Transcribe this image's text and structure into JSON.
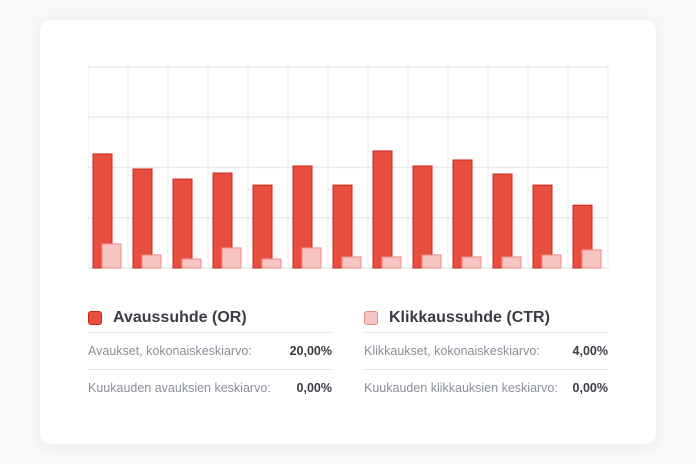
{
  "chart_data": {
    "type": "bar",
    "ylim": [
      0,
      40
    ],
    "grid": true,
    "legend": "bottom",
    "series": [
      {
        "name": "Avaussuhde (OR)",
        "color": "#e94f3f",
        "stroke": "#c9261b",
        "values": [
          22.7,
          19.7,
          17.7,
          18.9,
          16.5,
          20.3,
          16.5,
          23.3,
          20.3,
          21.5,
          18.7,
          16.5,
          12.5
        ]
      },
      {
        "name": "Klikkaussuhde (CTR)",
        "color": "#f6c5c3",
        "stroke": "#ef8a84",
        "values": [
          4.8,
          2.6,
          1.8,
          4.0,
          1.8,
          4.0,
          2.2,
          2.2,
          2.6,
          2.2,
          2.2,
          2.6,
          3.6
        ]
      }
    ]
  },
  "stats": {
    "or": {
      "rows": [
        {
          "label": "Avaukset, kokonaiskeskiarvo:",
          "value": "20,00%"
        },
        {
          "label": "Kuukauden avauksien keskiarvo:",
          "value": "0,00%"
        }
      ]
    },
    "ctr": {
      "rows": [
        {
          "label": "Klikkaukset, kokonaiskeskiarvo:",
          "value": "4,00%"
        },
        {
          "label": "Kuukauden klikkauksien keskiarvo:",
          "value": "0,00%"
        }
      ]
    }
  }
}
